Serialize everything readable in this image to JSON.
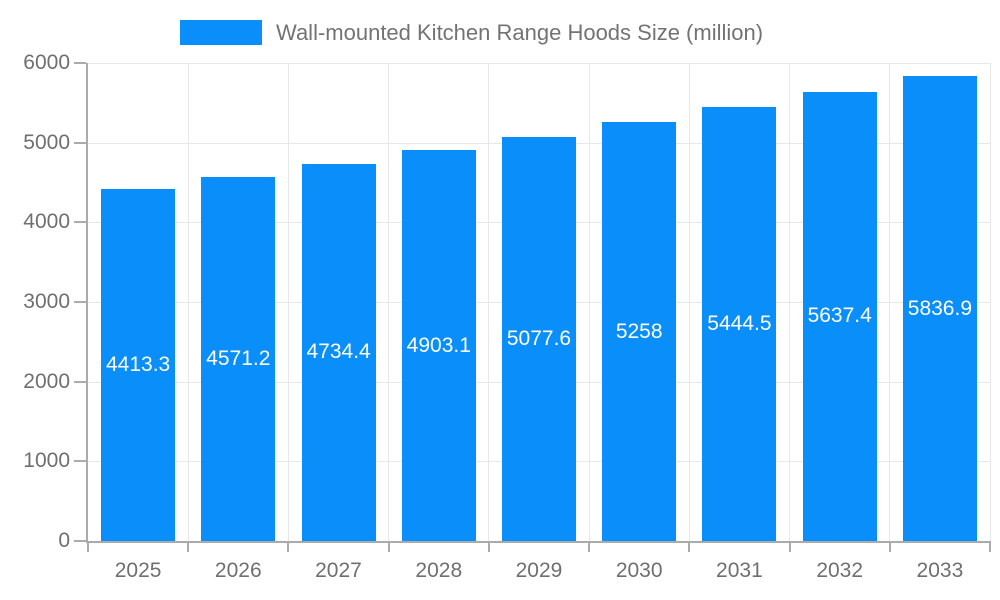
{
  "chart_data": {
    "type": "bar",
    "title": "Wall-mounted Kitchen Range Hoods Size (million)",
    "categories": [
      "2025",
      "2026",
      "2027",
      "2028",
      "2029",
      "2030",
      "2031",
      "2032",
      "2033"
    ],
    "series": [
      {
        "name": "Wall-mounted Kitchen Range Hoods Size (million)",
        "values": [
          4413.3,
          4571.2,
          4734.4,
          4903.1,
          5077.6,
          5258,
          5444.5,
          5637.4,
          5836.9
        ],
        "color": "#0a8ef9"
      }
    ],
    "value_labels": [
      "4413.3",
      "4571.2",
      "4734.4",
      "4903.1",
      "5077.6",
      "5258",
      "5444.5",
      "5637.4",
      "5836.9"
    ],
    "xlabel": "",
    "ylabel": "",
    "ylim": [
      0,
      6000
    ],
    "ytick_step": 1000,
    "ytick_labels": [
      "0",
      "1000",
      "2000",
      "3000",
      "4000",
      "5000",
      "6000"
    ],
    "grid": true,
    "legend_position": "top"
  },
  "colors": {
    "bar": "#0a8ef9",
    "grid": "#e7e7e7",
    "axis": "#ababab",
    "tick_label": "#6f6f6f",
    "legend_text": "#737373",
    "value_label": "#ffffff",
    "background": "#ffffff"
  }
}
